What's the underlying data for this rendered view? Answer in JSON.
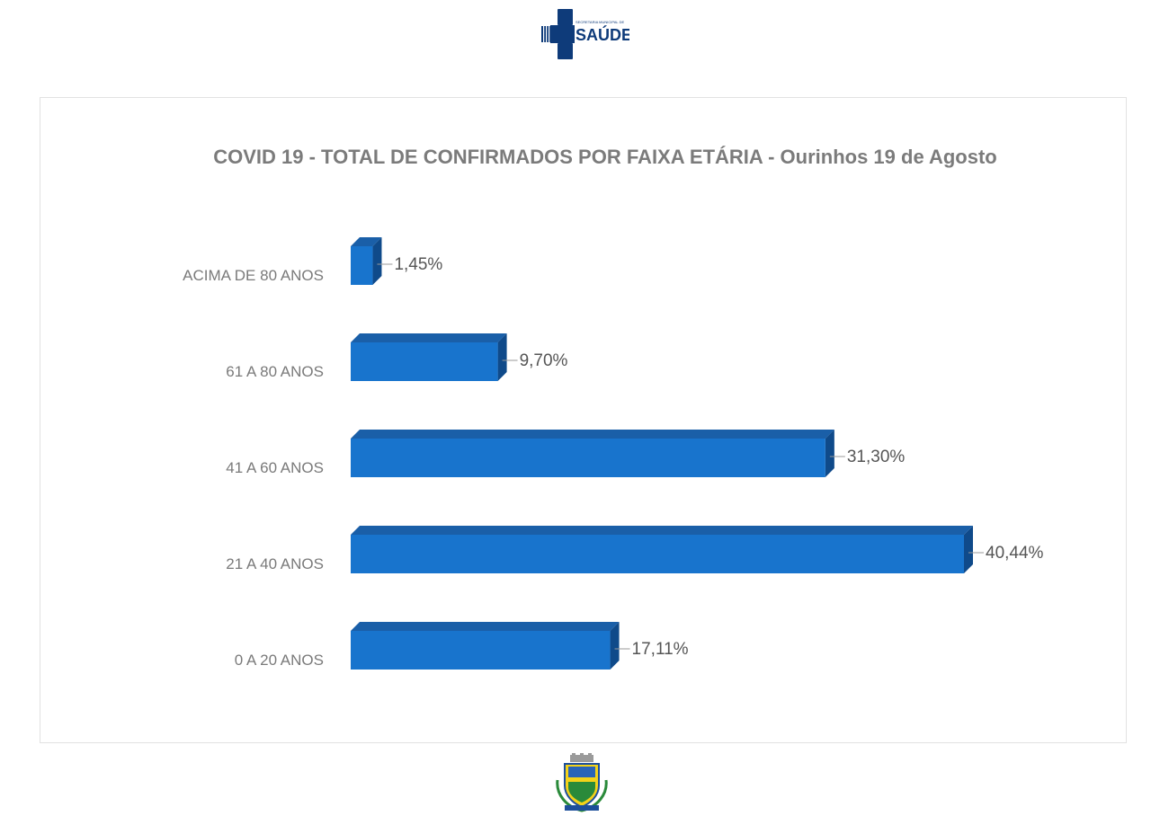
{
  "header": {
    "logo_small_text": "SECRETARIA MUNICIPAL DE",
    "logo_big_text": "SAÚDE",
    "logo_color": "#0e3b7a"
  },
  "footer": {
    "crest_icon": "municipal-coat-of-arms-icon"
  },
  "chart_data": {
    "type": "bar",
    "orientation": "horizontal",
    "style": "3d",
    "title": "COVID 19 - TOTAL DE CONFIRMADOS POR FAIXA ETÁRIA - Ourinhos 19 de Agosto",
    "categories": [
      "ACIMA DE 80 ANOS",
      "61 A 80 ANOS",
      "41 A 60 ANOS",
      "21 A 40 ANOS",
      "0 A 20 ANOS"
    ],
    "values": [
      1.45,
      9.7,
      31.3,
      40.44,
      17.11
    ],
    "value_labels": [
      "1,45%",
      "9,70%",
      "31,30%",
      "40,44%",
      "17,11%"
    ],
    "unit": "%",
    "xlim": [
      0,
      45
    ],
    "grid": false,
    "legend": "none",
    "bar_color": "#1874cd",
    "bar_top_color": "#1a5fa8",
    "bar_side_color": "#0f4a8a"
  }
}
